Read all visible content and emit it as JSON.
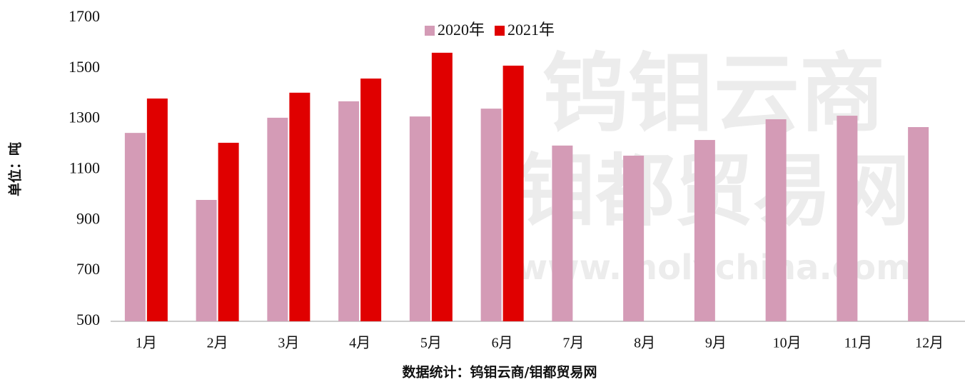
{
  "chart_data": {
    "type": "bar",
    "y_label": "单位：吨",
    "source": "数据统计：钨钼云商/钼都贸易网",
    "watermark": [
      "钨钼云商",
      "钼都贸易网",
      "www.molychina.com"
    ],
    "categories": [
      "1月",
      "2月",
      "3月",
      "4月",
      "5月",
      "6月",
      "7月",
      "8月",
      "9月",
      "10月",
      "11月",
      "12月"
    ],
    "series": [
      {
        "name": "2020年",
        "color": "#d49bb6",
        "values": [
          1245,
          980,
          1305,
          1370,
          1310,
          1341,
          1195,
          1155,
          1217,
          1299,
          1313,
          1268
        ]
      },
      {
        "name": "2021年",
        "color": "#e00000",
        "values": [
          1381,
          1206,
          1404,
          1460,
          1562,
          1511,
          null,
          null,
          null,
          null,
          null,
          null
        ]
      }
    ],
    "ylim": [
      500,
      1700
    ],
    "yticks": [
      500,
      700,
      900,
      1100,
      1300,
      1500,
      1700
    ],
    "grid": false,
    "legend": "top"
  }
}
